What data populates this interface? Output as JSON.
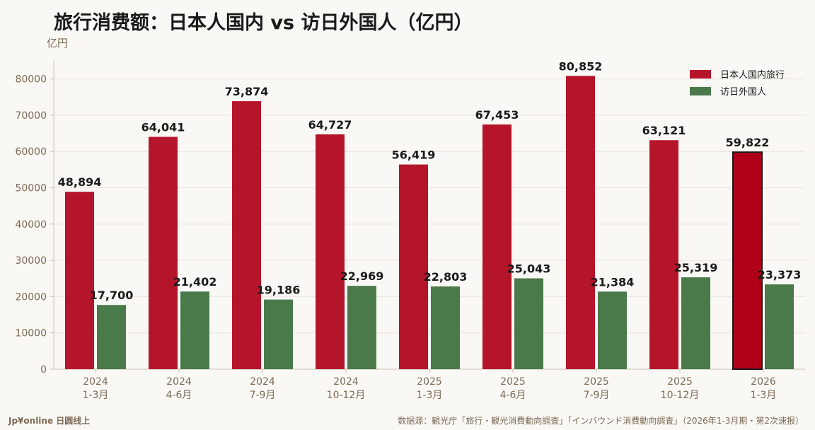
{
  "title": "旅行消费额：日本人国内 vs 访日外国人（亿円）",
  "footer": {
    "brand": "Jp¥online 日圆线上",
    "source": "数据源：観光庁「旅行・観光消費動向調査」「インバウンド消費動向調査」（2026年1-3月期・第2次速报）"
  },
  "chart_data": {
    "type": "bar",
    "title": "旅行消费额：日本人国内 vs 访日外国人（亿円）",
    "ylabel": "亿円",
    "xlabel": "",
    "ylim": [
      0,
      85000
    ],
    "yticks": [
      0,
      10000,
      20000,
      30000,
      40000,
      50000,
      60000,
      70000,
      80000
    ],
    "grid": true,
    "legend_position": "top-right",
    "categories": [
      [
        "2024",
        "1-3月"
      ],
      [
        "2024",
        "4-6月"
      ],
      [
        "2024",
        "7-9月"
      ],
      [
        "2024",
        "10-12月"
      ],
      [
        "2025",
        "1-3月"
      ],
      [
        "2025",
        "4-6月"
      ],
      [
        "2025",
        "7-9月"
      ],
      [
        "2025",
        "10-12月"
      ],
      [
        "2026",
        "1-3月"
      ]
    ],
    "series": [
      {
        "name": "日本人国内旅行",
        "color": "#b5152b",
        "values": [
          48894,
          64041,
          73874,
          64727,
          56419,
          67453,
          80852,
          63121,
          59822
        ],
        "labels": [
          "48,894",
          "64,041",
          "73,874",
          "64,727",
          "56,419",
          "67,453",
          "80,852",
          "63,121",
          "59,822"
        ]
      },
      {
        "name": "访日外国人",
        "color": "#4a7a4a",
        "values": [
          17700,
          21402,
          19186,
          22969,
          22803,
          25043,
          21384,
          25319,
          23373
        ],
        "labels": [
          "17,700",
          "21,402",
          "19,186",
          "22,969",
          "22,803",
          "25,043",
          "21,384",
          "25,319",
          "23,373"
        ]
      }
    ],
    "highlight": {
      "series": 0,
      "index": 8,
      "color": "#b00018",
      "outline": "#1a1a1a"
    }
  }
}
